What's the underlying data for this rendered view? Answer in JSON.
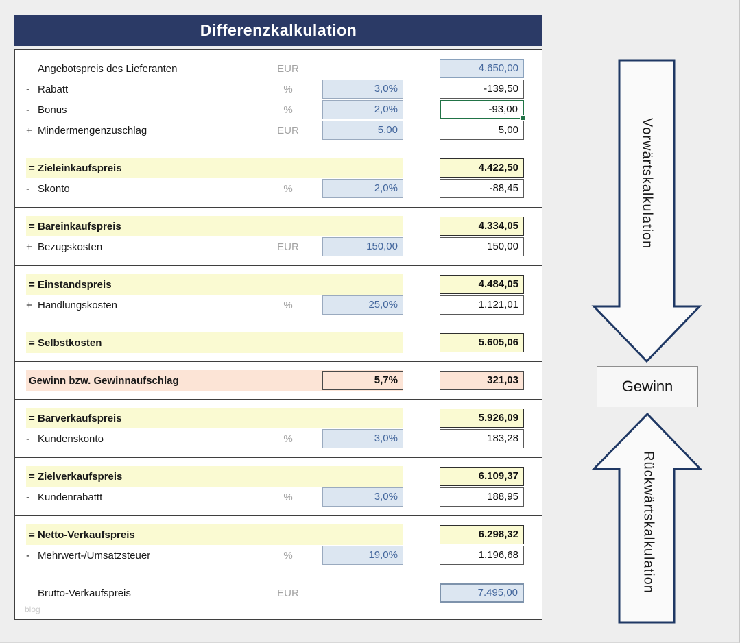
{
  "page": {
    "title": "Differenzkalkulation",
    "watermark": "blog"
  },
  "colors": {
    "title_bar": "#2b3a66",
    "page_background": "#eeeeee",
    "input_cell_bg": "#dce6f1",
    "input_text_blue": "#44679d",
    "subtotal_yellow": "#fafad2",
    "gewinn_peach": "#fce4d6",
    "selection_green": "#217346",
    "arrow_outline": "#1f3864"
  },
  "arrows": {
    "forward_label": "Vorwärtskalkulation",
    "backward_label": "Rückwärtskalkulation",
    "gewinn_label": "Gewinn"
  },
  "table": {
    "sections": [
      {
        "rows": [
          {
            "type": "plain",
            "prefix": "",
            "label": "Angebotspreis des Lieferanten",
            "unit": "EUR",
            "input": null,
            "result": "4.650,00",
            "result_style": "blue"
          },
          {
            "type": "plain",
            "prefix": "-",
            "label": "Rabatt",
            "unit": "%",
            "input": "3,0%",
            "result": "-139,50",
            "result_style": "white"
          },
          {
            "type": "plain",
            "prefix": "-",
            "label": "Bonus",
            "unit": "%",
            "input": "2,0%",
            "result": "-93,00",
            "result_style": "white",
            "selected": true
          },
          {
            "type": "plain",
            "prefix": "+",
            "label": "Mindermengenzuschlag",
            "unit": "EUR",
            "input": "5,00",
            "result": "5,00",
            "result_style": "white"
          }
        ]
      },
      {
        "rows": [
          {
            "type": "header",
            "prefix": "=",
            "label": "Zieleinkaufspreis",
            "result": "4.422,50",
            "result_style": "yellow"
          },
          {
            "type": "plain",
            "prefix": "-",
            "label": "Skonto",
            "unit": "%",
            "input": "2,0%",
            "result": "-88,45",
            "result_style": "white"
          }
        ]
      },
      {
        "rows": [
          {
            "type": "header",
            "prefix": "=",
            "label": "Bareinkaufspreis",
            "result": "4.334,05",
            "result_style": "yellow"
          },
          {
            "type": "plain",
            "prefix": "+",
            "label": "Bezugskosten",
            "unit": "EUR",
            "input": "150,00",
            "result": "150,00",
            "result_style": "white"
          }
        ]
      },
      {
        "rows": [
          {
            "type": "header",
            "prefix": "=",
            "label": "Einstandspreis",
            "result": "4.484,05",
            "result_style": "yellow"
          },
          {
            "type": "plain",
            "prefix": "+",
            "label": "Handlungskosten",
            "unit": "%",
            "input": "25,0%",
            "result": "1.121,01",
            "result_style": "white"
          }
        ]
      },
      {
        "rows": [
          {
            "type": "header",
            "prefix": "=",
            "label": "Selbstkosten",
            "result": "5.605,06",
            "result_style": "yellow"
          }
        ]
      },
      {
        "rows": [
          {
            "type": "gewinn",
            "prefix": "",
            "label": "Gewinn bzw. Gewinnaufschlag",
            "input": "5,7%",
            "result": "321,03",
            "result_style": "peach"
          }
        ]
      },
      {
        "rows": [
          {
            "type": "header",
            "prefix": "=",
            "label": "Barverkaufspreis",
            "result": "5.926,09",
            "result_style": "yellow"
          },
          {
            "type": "plain",
            "prefix": "-",
            "label": "Kundenskonto",
            "unit": "%",
            "input": "3,0%",
            "result": "183,28",
            "result_style": "white"
          }
        ]
      },
      {
        "rows": [
          {
            "type": "header",
            "prefix": "=",
            "label": "Zielverkaufspreis",
            "result": "6.109,37",
            "result_style": "yellow"
          },
          {
            "type": "plain",
            "prefix": "-",
            "label": "Kundenrabattt",
            "unit": "%",
            "input": "3,0%",
            "result": "188,95",
            "result_style": "white"
          }
        ]
      },
      {
        "rows": [
          {
            "type": "header",
            "prefix": "=",
            "label": "Netto-Verkaufspreis",
            "result": "6.298,32",
            "result_style": "yellow"
          },
          {
            "type": "plain",
            "prefix": "-",
            "label": "Mehrwert-/Umsatzsteuer",
            "unit": "%",
            "input": "19,0%",
            "result": "1.196,68",
            "result_style": "white"
          }
        ]
      },
      {
        "rows": [
          {
            "type": "plain",
            "prefix": "",
            "label": "Brutto-Verkaufspreis",
            "unit": "EUR",
            "input": null,
            "result": "7.495,00",
            "result_style": "blue-strong"
          }
        ]
      }
    ]
  }
}
